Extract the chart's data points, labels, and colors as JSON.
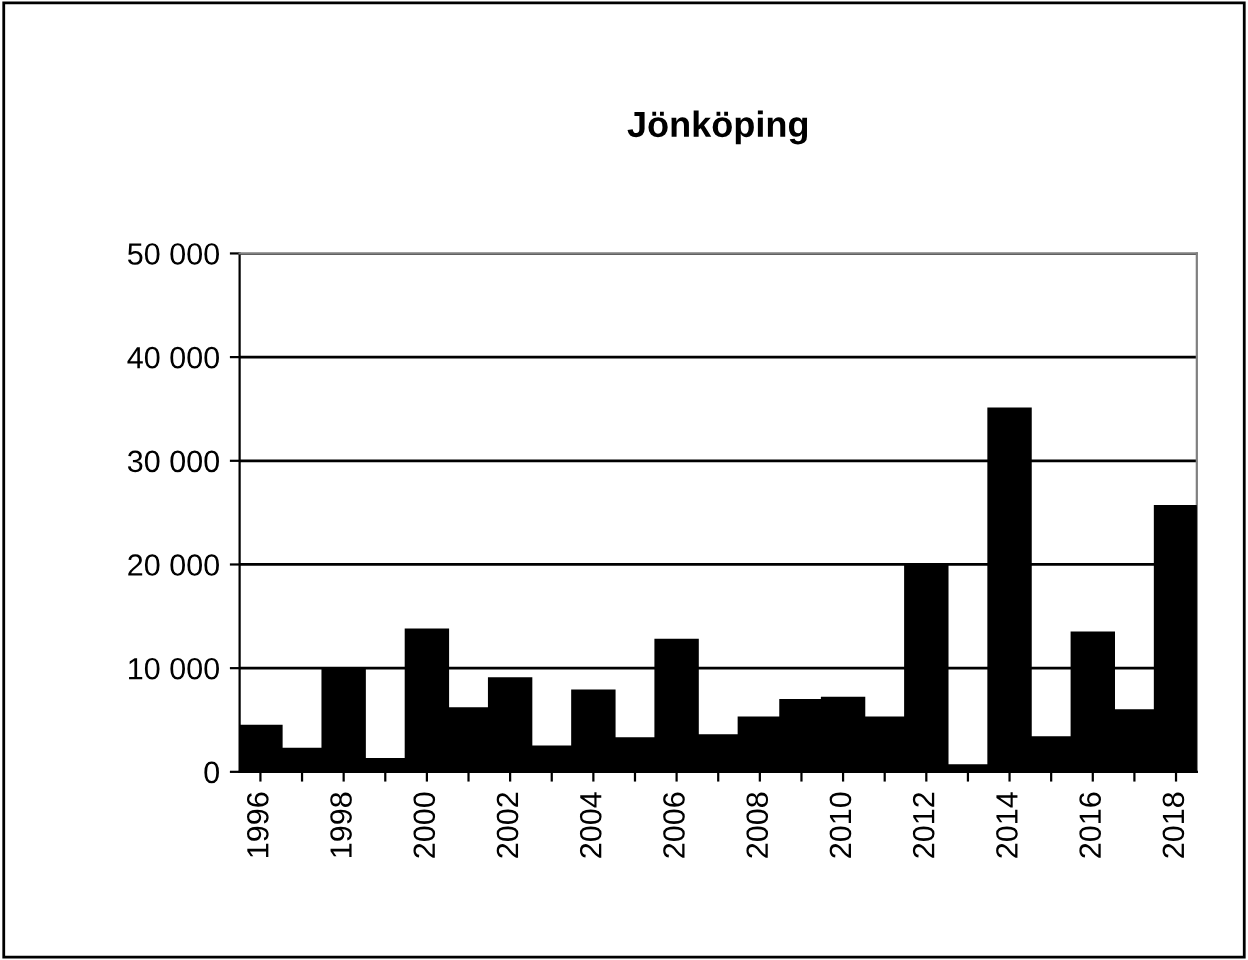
{
  "chart_data": {
    "type": "bar",
    "title": "Jönköping",
    "categories": [
      "1996",
      null,
      "1998",
      null,
      "2000",
      null,
      "2002",
      null,
      "2004",
      null,
      "2006",
      null,
      "2008",
      null,
      "2010",
      null,
      "2012",
      null,
      "2014",
      null,
      "2016",
      null,
      "2018"
    ],
    "values": [
      4400,
      2200,
      9900,
      1200,
      13700,
      6100,
      9000,
      2400,
      7800,
      3200,
      12700,
      3500,
      5200,
      6900,
      7100,
      5200,
      20000,
      600,
      35000,
      3300,
      13400,
      5900,
      25600
    ],
    "color": "#000000",
    "ylim": [
      0,
      50000
    ],
    "yticks": [
      {
        "value": 0,
        "label": "0"
      },
      {
        "value": 10000,
        "label": "10 000"
      },
      {
        "value": 20000,
        "label": "20 000"
      },
      {
        "value": 30000,
        "label": "30 000"
      },
      {
        "value": 40000,
        "label": "40 000"
      },
      {
        "value": 50000,
        "label": "50 000"
      }
    ],
    "grid": "y",
    "legend": false
  }
}
